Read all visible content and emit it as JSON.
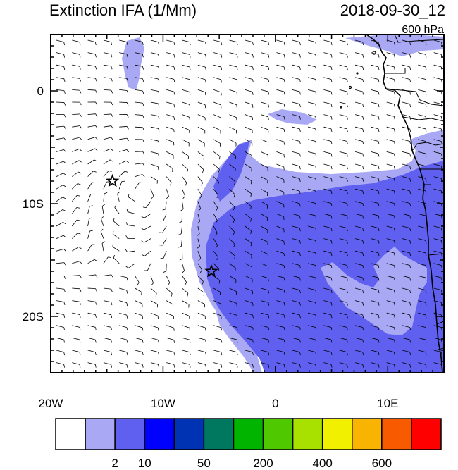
{
  "title": "Extinction IFA (1/Mm)",
  "datetime": "2018-09-30_12",
  "level": "600 hPa",
  "x_axis": {
    "ticks": [
      {
        "lon": -20,
        "label": "20W"
      },
      {
        "lon": -10,
        "label": "10W"
      },
      {
        "lon": 0,
        "label": "0"
      },
      {
        "lon": 10,
        "label": "10E"
      }
    ],
    "range": [
      -20,
      15
    ]
  },
  "y_axis": {
    "ticks": [
      {
        "lat": 0,
        "label": "0"
      },
      {
        "lat": -10,
        "label": "10S"
      },
      {
        "lat": -20,
        "label": "20S"
      }
    ],
    "range": [
      -25,
      5
    ]
  },
  "markers": [
    {
      "name": "star-marker",
      "lon": -14.5,
      "lat": -8.0
    },
    {
      "name": "star-marker",
      "lon": -5.7,
      "lat": -16.0
    }
  ],
  "colorbar": {
    "colors": [
      "#ffffff",
      "#a8a8f5",
      "#6060f0",
      "#0000ff",
      "#0032b4",
      "#007860",
      "#00b400",
      "#50c800",
      "#a8e000",
      "#f0f000",
      "#f8b400",
      "#f85a00",
      "#ff0000"
    ],
    "labels": [
      {
        "after_box": 1,
        "text": "2"
      },
      {
        "after_box": 2,
        "text": "10"
      },
      {
        "after_box": 4,
        "text": "50"
      },
      {
        "after_box": 6,
        "text": "200"
      },
      {
        "after_box": 8,
        "text": "400"
      },
      {
        "after_box": 10,
        "text": "600"
      }
    ]
  }
}
